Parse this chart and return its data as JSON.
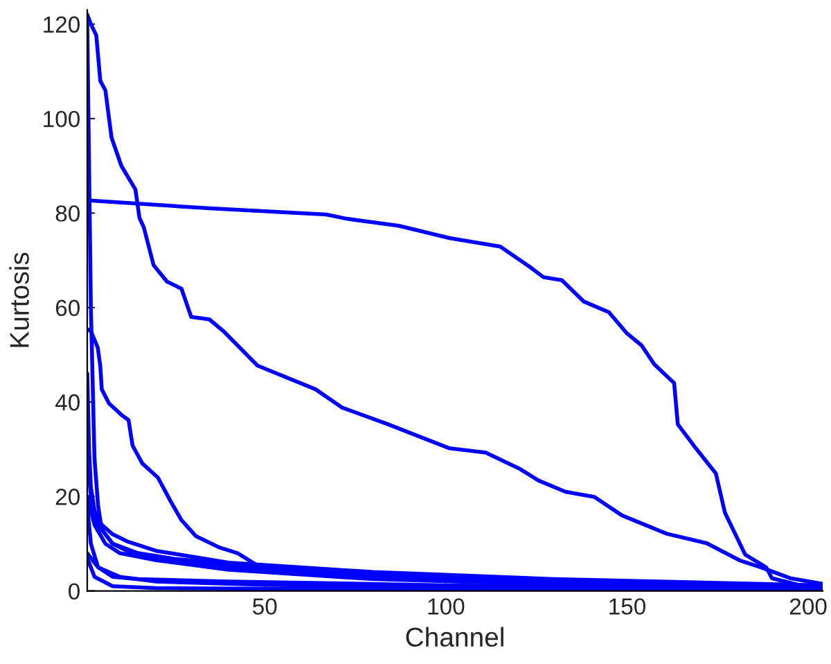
{
  "chart_data": {
    "type": "line",
    "xlabel": "Channel",
    "ylabel": "Kurtosis",
    "xlim": [
      1,
      204
    ],
    "ylim": [
      0,
      123
    ],
    "xticks": [
      50,
      100,
      150,
      200
    ],
    "yticks": [
      0,
      20,
      40,
      60,
      80,
      100,
      120
    ],
    "grid": false,
    "legend": false,
    "marker": "none",
    "line_style": "solid",
    "series": [
      {
        "color": "#0000ff",
        "x": [
          1,
          2,
          3.5,
          4.6,
          6,
          7.7,
          10.4,
          14.3,
          15.4,
          16.6,
          19.3,
          23,
          27,
          29.7,
          34.7,
          38.6,
          48,
          64,
          71.4,
          84,
          101,
          111,
          120.5,
          125.5,
          133,
          141,
          148.6,
          161,
          172,
          181,
          187,
          195,
          204
        ],
        "values": [
          122,
          120,
          117.6,
          108,
          106,
          96,
          90,
          85,
          79,
          77,
          69,
          65.5,
          64,
          58,
          57.5,
          55,
          47.7,
          42.7,
          38.8,
          35.3,
          30.2,
          29.3,
          25.8,
          23.4,
          21,
          19.9,
          16,
          12.1,
          10.1,
          6.5,
          5,
          2.7,
          1.5
        ]
      },
      {
        "color": "#0000ff",
        "x": [
          1,
          34.7,
          67,
          72.6,
          87,
          101,
          115,
          123,
          127,
          132,
          138,
          145,
          150,
          154,
          157.5,
          163,
          164,
          169,
          174.5,
          177,
          182.6,
          188.4,
          190,
          197.7,
          204
        ],
        "values": [
          82.7,
          81,
          79.7,
          78.8,
          77.3,
          74.7,
          72.9,
          68.7,
          66.4,
          65.8,
          61.3,
          59,
          54.5,
          52,
          48,
          44,
          35.3,
          30.2,
          24.9,
          16.6,
          7.7,
          5,
          2.7,
          1.2,
          0.3
        ]
      },
      {
        "color": "#0000ff",
        "x": [
          1,
          2,
          3.9,
          4.6,
          5,
          7,
          10.4,
          12.4,
          13.5,
          16.2,
          20.5,
          24,
          27,
          31,
          37.5,
          42.5,
          47.5,
          60.6,
          73,
          100,
          150,
          204
        ],
        "values": [
          55.4,
          55,
          51.5,
          47.6,
          42.7,
          39.7,
          37.3,
          36.2,
          30.8,
          27,
          24,
          19,
          15,
          11.6,
          9.2,
          8,
          5.6,
          4.1,
          3.2,
          2.2,
          1.3,
          0.4
        ]
      },
      {
        "color": "#0000ff",
        "x": [
          1,
          2,
          3,
          4,
          5,
          8,
          12,
          20,
          40,
          80,
          130,
          204
        ],
        "values": [
          120,
          60,
          28,
          18,
          13,
          10,
          8.5,
          7,
          5,
          3.5,
          2.2,
          1
        ]
      },
      {
        "color": "#0000ff",
        "x": [
          1,
          3,
          6,
          10,
          20,
          40,
          80,
          150,
          204
        ],
        "values": [
          20,
          14,
          10,
          8,
          6.5,
          4.5,
          2.5,
          1,
          0.3
        ]
      },
      {
        "color": "#0000ff",
        "x": [
          1,
          2,
          4,
          8,
          15,
          40,
          100,
          204
        ],
        "values": [
          18,
          10,
          5,
          3,
          2.5,
          2,
          1.2,
          0.3
        ]
      },
      {
        "color": "#0000ff",
        "x": [
          1,
          4,
          10,
          20,
          50,
          100,
          204
        ],
        "values": [
          8,
          5,
          3,
          2,
          1.3,
          0.8,
          0.2
        ]
      },
      {
        "color": "#0000ff",
        "x": [
          1,
          3,
          8,
          20,
          100,
          204
        ],
        "values": [
          7,
          3,
          1,
          0.6,
          0.3,
          0.1
        ]
      },
      {
        "color": "#0000ff",
        "x": [
          1,
          1.5,
          2,
          3,
          5,
          8,
          12,
          20,
          40,
          80,
          130,
          204
        ],
        "values": [
          46,
          30,
          22,
          17,
          14,
          12,
          10.5,
          8.5,
          6,
          4,
          2.5,
          1.2
        ]
      },
      {
        "color": "#0000ff",
        "x": [
          1,
          2,
          4,
          8,
          15,
          25,
          50,
          100,
          150,
          204
        ],
        "values": [
          29,
          20,
          14,
          10,
          8,
          6.8,
          5,
          3,
          1.8,
          0.6
        ]
      }
    ]
  }
}
